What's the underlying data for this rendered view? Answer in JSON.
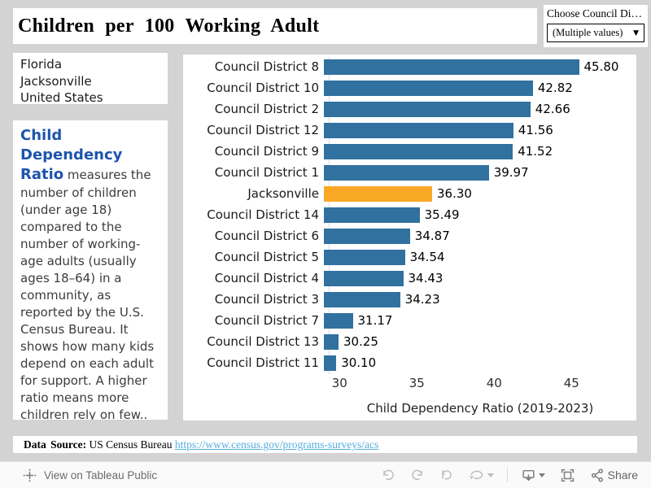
{
  "header": {
    "title": "Children per 100 Working Adult"
  },
  "filter": {
    "label": "Choose Council Di…",
    "value": "(Multiple values)"
  },
  "region_list": {
    "items": [
      "Florida",
      "Jacksonville",
      "United States"
    ]
  },
  "description": {
    "lead": "Child Dependency Ratio",
    "body": " measures the number of children (under age 18) compared to the number of working-age adults (usually ages 18–64) in a community, as reported by the U.S. Census Bureau. It shows how many kids depend on each adult for support. A higher ratio means more children rely on few.."
  },
  "chart_data": {
    "type": "bar",
    "orientation": "horizontal",
    "categories": [
      "Council District 8",
      "Council District 10",
      "Council District 2",
      "Council District 12",
      "Council District 9",
      "Council District 1",
      "Jacksonville",
      "Council District 14",
      "Council District 6",
      "Council District 5",
      "Council District 4",
      "Council District 3",
      "Council District 7",
      "Council District 13",
      "Council District 11"
    ],
    "values": [
      45.8,
      42.82,
      42.66,
      41.56,
      41.52,
      39.97,
      36.3,
      35.49,
      34.87,
      34.54,
      34.43,
      34.23,
      31.17,
      30.25,
      30.1
    ],
    "highlight_category": "Jacksonville",
    "colors": {
      "bar": "#31719f",
      "highlight": "#f9a825"
    },
    "xlabel": "Child Dependency Ratio (2019-2023)",
    "ticks": [
      30,
      35,
      40,
      45
    ],
    "xlim": [
      29.3,
      47.6
    ],
    "grid": false,
    "legend": false,
    "value_label_format": "2-decimals"
  },
  "footer": {
    "label": "Data Source:",
    "text": " US Census Bureau ",
    "link": "https://www.census.gov/programs-surveys/acs"
  },
  "toolbar": {
    "view_on": "View on Tableau Public",
    "share": "Share",
    "icons": [
      "tableau-logo",
      "undo",
      "redo",
      "replay",
      "refresh",
      "caret-down",
      "download",
      "fullscreen",
      "share-nodes"
    ]
  }
}
